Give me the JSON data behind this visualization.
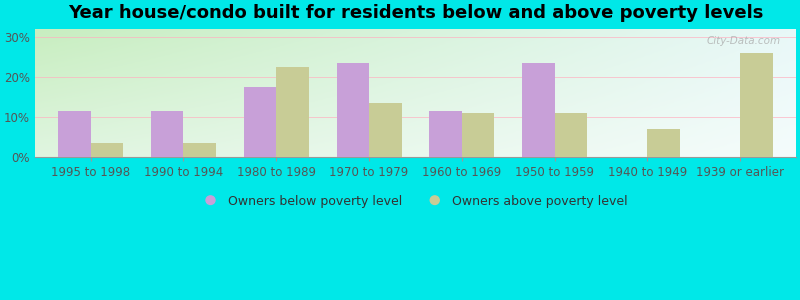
{
  "title": "Year house/condo built for residents below and above poverty levels",
  "categories": [
    "1995 to 1998",
    "1990 to 1994",
    "1980 to 1989",
    "1970 to 1979",
    "1960 to 1969",
    "1950 to 1959",
    "1940 to 1949",
    "1939 or earlier"
  ],
  "below_poverty": [
    11.5,
    11.5,
    17.5,
    23.5,
    11.5,
    23.5,
    0.0,
    0.0
  ],
  "above_poverty": [
    3.5,
    3.5,
    22.5,
    13.5,
    11.0,
    11.0,
    7.0,
    26.0
  ],
  "below_color": "#c8a0d8",
  "above_color": "#c8cc96",
  "outer_bg": "#00e8e8",
  "ylim": [
    0,
    32
  ],
  "yticks": [
    0,
    10,
    20,
    30
  ],
  "ytick_labels": [
    "0%",
    "10%",
    "20%",
    "30%"
  ],
  "bar_width": 0.35,
  "legend_below_label": "Owners below poverty level",
  "legend_above_label": "Owners above poverty level",
  "title_fontsize": 13,
  "tick_fontsize": 8.5,
  "grad_color_topleft": "#c8eec0",
  "grad_color_topright": "#e8f8f8",
  "grad_color_botleft": "#e0f5e0",
  "grad_color_botright": "#f5fcfc"
}
